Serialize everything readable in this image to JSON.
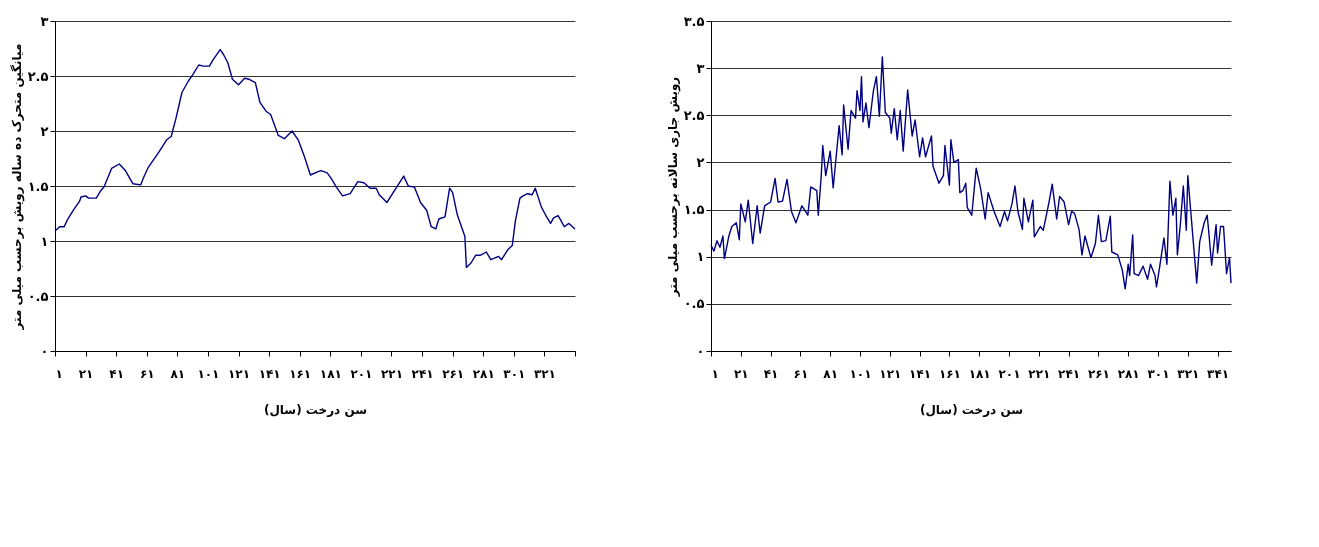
{
  "chart_data": [
    {
      "type": "line",
      "xlabel": "سن درخت (سال)",
      "ylabel": "میانگین متحرک ده ساله رویش برحسب میلی متر",
      "xlim": [
        1,
        341
      ],
      "xticks": [
        {
          "value": 1,
          "label": "۱"
        },
        {
          "value": 21,
          "label": "۲۱"
        },
        {
          "value": 41,
          "label": "۴۱"
        },
        {
          "value": 61,
          "label": "۶۱"
        },
        {
          "value": 81,
          "label": "۸۱"
        },
        {
          "value": 101,
          "label": "۱۰۱"
        },
        {
          "value": 121,
          "label": "۱۲۱"
        },
        {
          "value": 141,
          "label": "۱۴۱"
        },
        {
          "value": 161,
          "label": "۱۶۱"
        },
        {
          "value": 181,
          "label": "۱۸۱"
        },
        {
          "value": 201,
          "label": "۲۰۱"
        },
        {
          "value": 221,
          "label": "۲۲۱"
        },
        {
          "value": 241,
          "label": "۲۴۱"
        },
        {
          "value": 261,
          "label": "۲۶۱"
        },
        {
          "value": 281,
          "label": "۲۸۱"
        },
        {
          "value": 301,
          "label": "۳۰۱"
        },
        {
          "value": 321,
          "label": "۳۲۱"
        },
        {
          "value": 341,
          "label": null
        }
      ],
      "ylim": [
        0,
        3
      ],
      "yticks": [
        {
          "value": 0,
          "label": "۰"
        },
        {
          "value": 0.5,
          "label": "۰.۵"
        },
        {
          "value": 1,
          "label": "۱"
        },
        {
          "value": 1.5,
          "label": "۱.۵"
        },
        {
          "value": 2,
          "label": "۲"
        },
        {
          "value": 2.5,
          "label": "۲.۵"
        },
        {
          "value": 3,
          "label": "۳"
        }
      ],
      "grid": "y",
      "marker": "none",
      "line_style": "solid",
      "series": [
        {
          "color": "#000080",
          "x": [
            1,
            4,
            7,
            9,
            13,
            17,
            18,
            21,
            23,
            26,
            28,
            31,
            33,
            36,
            38,
            43,
            47,
            52,
            57,
            59,
            62,
            69,
            74,
            77,
            80,
            84,
            88,
            91,
            95,
            98,
            102,
            104,
            109,
            111,
            114,
            117,
            121,
            125,
            128,
            132,
            135,
            139,
            142,
            147,
            151,
            156,
            160,
            164,
            168,
            173,
            175,
            179,
            182,
            185,
            189,
            194,
            199,
            203,
            207,
            211,
            213,
            218,
            224,
            229,
            232,
            236,
            240,
            244,
            247,
            250,
            252,
            256,
            259,
            261,
            264,
            269,
            270,
            273,
            276,
            279,
            283,
            286,
            291,
            293,
            297,
            300,
            302,
            305,
            307,
            310,
            313,
            315,
            319,
            322,
            325,
            327,
            330,
            334,
            337,
            341
          ],
          "values": [
            1.09,
            1.13,
            1.13,
            1.19,
            1.28,
            1.36,
            1.4,
            1.41,
            1.39,
            1.39,
            1.39,
            1.46,
            1.49,
            1.59,
            1.66,
            1.7,
            1.64,
            1.52,
            1.51,
            1.58,
            1.67,
            1.81,
            1.92,
            1.95,
            2.11,
            2.35,
            2.45,
            2.51,
            2.6,
            2.59,
            2.59,
            2.64,
            2.74,
            2.7,
            2.62,
            2.47,
            2.42,
            2.48,
            2.47,
            2.44,
            2.26,
            2.18,
            2.15,
            1.96,
            1.93,
            2.0,
            1.92,
            1.77,
            1.6,
            1.63,
            1.64,
            1.62,
            1.56,
            1.49,
            1.41,
            1.43,
            1.54,
            1.53,
            1.48,
            1.48,
            1.42,
            1.35,
            1.48,
            1.59,
            1.5,
            1.49,
            1.35,
            1.28,
            1.13,
            1.11,
            1.2,
            1.22,
            1.48,
            1.44,
            1.24,
            1.04,
            0.76,
            0.8,
            0.87,
            0.87,
            0.9,
            0.83,
            0.86,
            0.83,
            0.92,
            0.96,
            1.18,
            1.39,
            1.41,
            1.43,
            1.42,
            1.48,
            1.31,
            1.23,
            1.16,
            1.21,
            1.23,
            1.13,
            1.16,
            1.11
          ]
        }
      ]
    },
    {
      "type": "line",
      "xlabel": "سن درخت (سال)",
      "ylabel": "رویش جاری سالانه برحسب میلی متر",
      "xlim": [
        1,
        350
      ],
      "xticks": [
        {
          "value": 1,
          "label": "۱"
        },
        {
          "value": 21,
          "label": "۲۱"
        },
        {
          "value": 41,
          "label": "۴۱"
        },
        {
          "value": 61,
          "label": "۶۱"
        },
        {
          "value": 81,
          "label": "۸۱"
        },
        {
          "value": 101,
          "label": "۱۰۱"
        },
        {
          "value": 121,
          "label": "۱۲۱"
        },
        {
          "value": 141,
          "label": "۱۴۱"
        },
        {
          "value": 161,
          "label": "۱۶۱"
        },
        {
          "value": 181,
          "label": "۱۸۱"
        },
        {
          "value": 201,
          "label": "۲۰۱"
        },
        {
          "value": 221,
          "label": "۲۲۱"
        },
        {
          "value": 241,
          "label": "۲۴۱"
        },
        {
          "value": 261,
          "label": "۲۶۱"
        },
        {
          "value": 281,
          "label": "۲۸۱"
        },
        {
          "value": 301,
          "label": "۳۰۱"
        },
        {
          "value": 321,
          "label": "۳۲۱"
        },
        {
          "value": 341,
          "label": "۳۴۱"
        }
      ],
      "ylim": [
        0,
        3.5
      ],
      "yticks": [
        {
          "value": 0,
          "label": "۰"
        },
        {
          "value": 0.5,
          "label": "۰.۵"
        },
        {
          "value": 1,
          "label": "۱"
        },
        {
          "value": 1.5,
          "label": "۱.۵"
        },
        {
          "value": 2,
          "label": "۲"
        },
        {
          "value": 2.5,
          "label": "۲.۵"
        },
        {
          "value": 3,
          "label": "۳"
        },
        {
          "value": 3.5,
          "label": "۳.۵"
        }
      ],
      "grid": "y",
      "marker": "none",
      "line_style": "solid",
      "series": [
        {
          "color": "#000080",
          "x": [
            1,
            3,
            5,
            7,
            9,
            10,
            13,
            15,
            18,
            20,
            21,
            24,
            26,
            29,
            32,
            34,
            37,
            41,
            44,
            46,
            49,
            52,
            55,
            58,
            62,
            66,
            68,
            72,
            73,
            75,
            76,
            78,
            81,
            83,
            85,
            87,
            89,
            90,
            93,
            95,
            98,
            99,
            101,
            102,
            103,
            105,
            107,
            110,
            112,
            114,
            116,
            118,
            121,
            122,
            124,
            126,
            128,
            130,
            133,
            136,
            138,
            141,
            143,
            145,
            149,
            150,
            154,
            157,
            158,
            161,
            162,
            164,
            167,
            168,
            170,
            172,
            173,
            176,
            179,
            182,
            185,
            187,
            191,
            195,
            198,
            200,
            203,
            205,
            207,
            210,
            211,
            214,
            217,
            218,
            222,
            224,
            228,
            230,
            233,
            235,
            238,
            241,
            243,
            245,
            248,
            250,
            252,
            256,
            259,
            261,
            263,
            266,
            269,
            270,
            274,
            277,
            279,
            281,
            282,
            284,
            285,
            288,
            291,
            294,
            296,
            299,
            300,
            302,
            305,
            307,
            309,
            311,
            313,
            314,
            316,
            318,
            320,
            321,
            323,
            327,
            329,
            332,
            334,
            335,
            337,
            340,
            341,
            343,
            345,
            347,
            349,
            350
          ],
          "values": [
            1.12,
            1.06,
            1.17,
            1.1,
            1.22,
            0.98,
            1.22,
            1.32,
            1.36,
            1.18,
            1.56,
            1.37,
            1.6,
            1.14,
            1.54,
            1.25,
            1.54,
            1.58,
            1.83,
            1.58,
            1.59,
            1.82,
            1.48,
            1.36,
            1.54,
            1.44,
            1.74,
            1.7,
            1.44,
            1.86,
            2.18,
            1.86,
            2.12,
            1.73,
            2.06,
            2.39,
            2.08,
            2.61,
            2.14,
            2.55,
            2.47,
            2.76,
            2.55,
            2.91,
            2.43,
            2.63,
            2.37,
            2.76,
            2.91,
            2.49,
            3.12,
            2.53,
            2.47,
            2.31,
            2.57,
            2.24,
            2.55,
            2.12,
            2.77,
            2.28,
            2.45,
            2.06,
            2.26,
            2.06,
            2.28,
            1.96,
            1.78,
            1.86,
            2.18,
            1.76,
            2.24,
            2.0,
            2.03,
            1.68,
            1.7,
            1.78,
            1.52,
            1.44,
            1.94,
            1.72,
            1.4,
            1.68,
            1.48,
            1.32,
            1.48,
            1.38,
            1.56,
            1.75,
            1.48,
            1.29,
            1.62,
            1.37,
            1.6,
            1.21,
            1.32,
            1.28,
            1.59,
            1.77,
            1.4,
            1.64,
            1.58,
            1.34,
            1.48,
            1.46,
            1.29,
            1.02,
            1.22,
            0.99,
            1.14,
            1.44,
            1.16,
            1.17,
            1.43,
            1.05,
            1.02,
            0.86,
            0.66,
            0.92,
            0.8,
            1.23,
            0.82,
            0.8,
            0.9,
            0.76,
            0.92,
            0.8,
            0.68,
            0.88,
            1.2,
            0.92,
            1.8,
            1.44,
            1.62,
            1.02,
            1.34,
            1.75,
            1.28,
            1.86,
            1.48,
            0.72,
            1.16,
            1.36,
            1.44,
            1.28,
            0.91,
            1.34,
            1.04,
            1.32,
            1.32,
            0.82,
            0.99,
            0.72
          ]
        }
      ]
    }
  ]
}
